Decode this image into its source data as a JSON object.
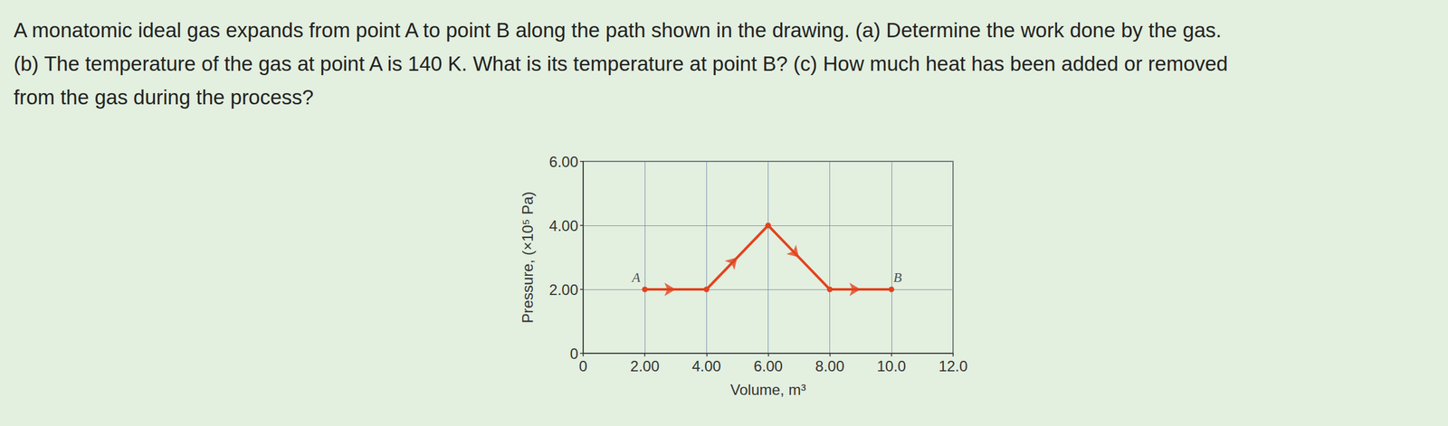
{
  "question": {
    "lines": [
      "A monatomic ideal gas expands from point A to point B along the path shown in the drawing. (a) Determine the work done by the gas.",
      "(b) The temperature of the gas at point A is 140 K. What is its temperature at point B? (c) How much heat has been added or removed",
      "from the gas during the process?"
    ]
  },
  "chart_data": {
    "type": "line",
    "xlabel": "Volume, m³",
    "ylabel": "Pressure, (×10⁵ Pa)",
    "x": [
      2,
      4,
      6,
      8,
      10
    ],
    "values": [
      2,
      2,
      4,
      2,
      2
    ],
    "color": "#e2431e",
    "marker": "circle",
    "line_style": "solid",
    "xlim": [
      0,
      12
    ],
    "xticks": [
      0,
      {
        "value": 2,
        "label": "2.00"
      },
      {
        "value": 4,
        "label": "4.00"
      },
      {
        "value": 6,
        "label": "6.00"
      },
      {
        "value": 8,
        "label": "8.00"
      },
      {
        "value": 10,
        "label": "10.0"
      },
      {
        "value": 12,
        "label": "12.0"
      }
    ],
    "ylim": [
      0,
      6
    ],
    "yticks": [
      0,
      {
        "value": 2,
        "label": "2.00"
      },
      {
        "value": 4,
        "label": "4.00"
      },
      {
        "value": 6,
        "label": "6.00"
      }
    ],
    "grid": true,
    "annotations": [
      {
        "text": "A",
        "x": 2,
        "y": 2
      },
      {
        "text": "B",
        "x": 10,
        "y": 2
      }
    ]
  }
}
